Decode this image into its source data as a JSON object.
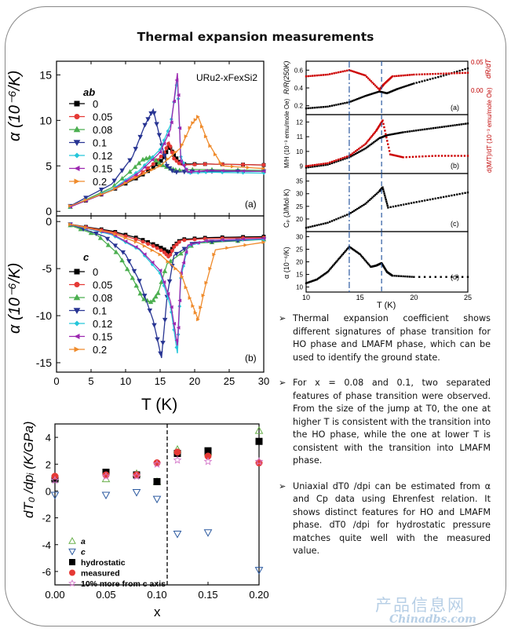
{
  "page": {
    "title": "Thermal expansion measurements"
  },
  "fig_left": {
    "compound": "URu2-xFexSi2",
    "ylabel": "α (10⁻⁶/K)",
    "xlabel": "T (K)",
    "panel_a_label": "(a)",
    "panel_b_label": "(b)",
    "legend_a_title": "ab",
    "legend_b_title": "c",
    "legend_entries": [
      "0",
      "0.05",
      "0.08",
      "0.1",
      "0.12",
      "0.15",
      "0.2"
    ],
    "legend_colors": [
      "#000000",
      "#e53935",
      "#4caf50",
      "#283593",
      "#26c6da",
      "#9c27b0",
      "#ef8b2c"
    ],
    "xticks": [
      "0",
      "5",
      "10",
      "15",
      "20",
      "25",
      "30"
    ],
    "yticks_a": [
      "0",
      "5",
      "10",
      "15"
    ],
    "yticks_b": [
      "0",
      "-5",
      "-10",
      "-15"
    ]
  },
  "fig_right": {
    "xlabel": "T (K)",
    "xticks": [
      "10",
      "15",
      "20",
      "25"
    ],
    "panel_a": {
      "label": "(a)",
      "yleft": "R/R(250K)",
      "yright": "dR/dT",
      "yticks_left": [
        "0.2",
        "0.4",
        "0.6"
      ],
      "yticks_right": [
        "0.00",
        "0.05"
      ]
    },
    "panel_b": {
      "label": "(b)",
      "yleft": "M/H (10⁻³ emu/mole Oe)",
      "yright": "d(M/T)/dT (10⁻³ emu/mole Oe)",
      "yticks_left": [
        "9",
        "10",
        "11",
        "12"
      ]
    },
    "panel_c": {
      "label": "(c)",
      "yleft": "Cₚ (J/Mol·K)",
      "yticks_left": [
        "15",
        "20",
        "25",
        "30",
        "35"
      ]
    },
    "panel_d": {
      "label": "(d)",
      "yleft": "α (10⁻⁶/K)",
      "yticks_left": [
        "10",
        "15",
        "20",
        "25",
        "30"
      ]
    }
  },
  "fig_bottom": {
    "ylabel": "dT₀ /dpᵢ (K/GPa)",
    "xlabel": "x",
    "xticks": [
      "0.00",
      "0.05",
      "0.10",
      "0.15",
      "0.20"
    ],
    "yticks": [
      "4",
      "2",
      "0",
      "-2",
      "-4",
      "-6"
    ],
    "legend": [
      "a",
      "c",
      "hydrostatic",
      "measured",
      "10% more from c axis"
    ]
  },
  "bullets": [
    "Thermal expansion coefficient shows different signatures of phase transition for HO phase and LMAFM phase, which can be used to identify the ground state.",
    "For x = 0.08 and 0.1, two separated features of phase transition were observed. From the size of the jump at T0, the one at higher T is consistent with the transition into the HO phase, while the one at lower T is consistent with the transition into LMAFM phase.",
    "Uniaxial dT0 /dpi can be estimated from α and Cp data using Ehrenfest relation. It shows distinct features for HO and LMAFM phase. dT0 /dpi for hydrostatic pressure matches quite well with the measured value."
  ],
  "watermark": {
    "cn": "产品信息网",
    "en": "Chinadbs.com"
  },
  "chart_data": [
    {
      "type": "line",
      "title": "",
      "xlabel": "T (K)",
      "ylabel": "α (10⁻⁶/K) — ab",
      "xlim": [
        0,
        30
      ],
      "ylim": [
        -0.5,
        16.5
      ],
      "series": [
        {
          "name": "0",
          "color": "#000000",
          "x": [
            2,
            8,
            12,
            14,
            15.5,
            16.3,
            17,
            18,
            22,
            30
          ],
          "y": [
            0.5,
            2.3,
            3.8,
            4.8,
            5.8,
            7.2,
            6.2,
            5.2,
            5.2,
            5.1
          ]
        },
        {
          "name": "0.05",
          "color": "#e53935",
          "x": [
            2,
            8,
            12,
            14,
            15.5,
            16.3,
            17,
            18,
            22,
            30
          ],
          "y": [
            0.5,
            2.4,
            4.0,
            5.2,
            6.3,
            7.6,
            5.8,
            5.1,
            5.2,
            5.1
          ]
        },
        {
          "name": "0.08",
          "color": "#4caf50",
          "x": [
            2,
            8,
            11,
            12.5,
            13.8,
            15,
            16.5,
            17.5,
            20,
            30
          ],
          "y": [
            0.5,
            2.6,
            4.6,
            5.7,
            6.0,
            5.2,
            4.7,
            4.5,
            4.6,
            4.5
          ]
        },
        {
          "name": "0.1",
          "color": "#283593",
          "x": [
            2,
            8,
            11,
            12.8,
            14,
            15,
            16,
            17,
            20,
            30
          ],
          "y": [
            0.6,
            3.0,
            6.0,
            9.5,
            11.2,
            8.0,
            5.0,
            4.3,
            4.4,
            4.4
          ]
        },
        {
          "name": "0.12",
          "color": "#26c6da",
          "x": [
            2,
            8,
            12,
            15,
            16.5,
            17.5,
            18,
            19,
            22,
            30
          ],
          "y": [
            0.5,
            2.4,
            4.5,
            6.8,
            9.5,
            14.5,
            6.0,
            4.2,
            4.3,
            4.2
          ]
        },
        {
          "name": "0.15",
          "color": "#9c27b0",
          "x": [
            2,
            8,
            12,
            15,
            16.5,
            17.5,
            18,
            19,
            22,
            30
          ],
          "y": [
            0.5,
            2.3,
            4.3,
            6.5,
            9.0,
            15.2,
            5.5,
            4.3,
            4.5,
            4.4
          ]
        },
        {
          "name": "0.2",
          "color": "#ef8b2c",
          "x": [
            2,
            8,
            12,
            15,
            18,
            19.5,
            20.5,
            22,
            24,
            30
          ],
          "y": [
            0.6,
            2.3,
            3.9,
            5.0,
            7.0,
            9.5,
            10.4,
            7.5,
            5.0,
            4.7
          ]
        }
      ]
    },
    {
      "type": "line",
      "title": "",
      "xlabel": "T (K)",
      "ylabel": "α (10⁻⁶/K) — c",
      "xlim": [
        0,
        30
      ],
      "ylim": [
        -16,
        0.6
      ],
      "series": [
        {
          "name": "0",
          "color": "#000000",
          "x": [
            2,
            8,
            12,
            14,
            15.5,
            16.3,
            17,
            18,
            22,
            30
          ],
          "y": [
            -0.3,
            -1.0,
            -1.8,
            -2.4,
            -2.9,
            -3.4,
            -2.6,
            -1.9,
            -1.7,
            -1.6
          ]
        },
        {
          "name": "0.05",
          "color": "#e53935",
          "x": [
            2,
            8,
            12,
            14,
            15.5,
            16.3,
            17,
            18,
            22,
            30
          ],
          "y": [
            -0.3,
            -1.1,
            -2.0,
            -2.6,
            -3.2,
            -3.8,
            -2.7,
            -2.0,
            -1.8,
            -1.7
          ]
        },
        {
          "name": "0.08",
          "color": "#4caf50",
          "x": [
            2,
            6,
            9,
            11,
            12.5,
            13.8,
            14.7,
            16,
            20,
            30
          ],
          "y": [
            -0.4,
            -1.5,
            -3.5,
            -6.0,
            -8.2,
            -8.6,
            -7.6,
            -4.5,
            -2.3,
            -1.9
          ]
        },
        {
          "name": "0.1",
          "color": "#283593",
          "x": [
            2,
            7,
            10,
            12,
            14,
            15.2,
            16,
            17,
            20,
            30
          ],
          "y": [
            -0.3,
            -1.6,
            -3.5,
            -6.3,
            -10.5,
            -14.5,
            -8.0,
            -3.6,
            -2.2,
            -1.9
          ]
        },
        {
          "name": "0.12",
          "color": "#26c6da",
          "x": [
            2,
            8,
            12,
            15,
            16.5,
            17.5,
            18,
            19,
            22,
            30
          ],
          "y": [
            -0.3,
            -1.4,
            -3.0,
            -5.5,
            -9.0,
            -14.0,
            -6.0,
            -2.6,
            -2.0,
            -1.9
          ]
        },
        {
          "name": "0.15",
          "color": "#9c27b0",
          "x": [
            2,
            8,
            12,
            15,
            16.5,
            17.5,
            18,
            19,
            22,
            30
          ],
          "y": [
            -0.3,
            -1.3,
            -2.9,
            -5.2,
            -8.5,
            -13.2,
            -5.5,
            -2.5,
            -2.0,
            -1.8
          ]
        },
        {
          "name": "0.2",
          "color": "#ef8b2c",
          "x": [
            2,
            8,
            12,
            15,
            18,
            19.5,
            20.5,
            21.5,
            23,
            30
          ],
          "y": [
            -0.3,
            -1.2,
            -2.3,
            -3.5,
            -5.5,
            -8.5,
            -10.4,
            -7.0,
            -3.0,
            -2.2
          ]
        }
      ]
    },
    {
      "type": "scatter",
      "title": "",
      "xlabel": "x",
      "ylabel": "dT₀ /dpᵢ (K/GPa)",
      "xlim": [
        0,
        0.2
      ],
      "ylim": [
        -7,
        5
      ],
      "divider_x": 0.11,
      "series": [
        {
          "name": "a",
          "marker": "triangle-up",
          "color": "#6ab04c",
          "x": [
            0,
            0.05,
            0.08,
            0.1,
            0.12,
            0.15,
            0.2
          ],
          "y": [
            1.0,
            0.9,
            1.3,
            0.7,
            3.1,
            2.9,
            4.5
          ]
        },
        {
          "name": "c",
          "marker": "triangle-down",
          "color": "#2c5aa0",
          "x": [
            0,
            0.05,
            0.08,
            0.1,
            0.12,
            0.15,
            0.2
          ],
          "y": [
            -0.3,
            -0.3,
            -0.1,
            -0.6,
            -3.2,
            -3.1,
            -5.9
          ]
        },
        {
          "name": "hydrostatic",
          "marker": "square",
          "color": "#000000",
          "x": [
            0,
            0.05,
            0.08,
            0.1,
            0.12,
            0.15,
            0.2
          ],
          "y": [
            0.9,
            1.4,
            1.2,
            0.7,
            2.8,
            3.0,
            3.7
          ]
        },
        {
          "name": "measured",
          "marker": "circle",
          "color": "#e53935",
          "x": [
            0,
            0.05,
            0.08,
            0.1,
            0.12,
            0.15,
            0.2
          ],
          "y": [
            1.1,
            1.2,
            1.2,
            2.1,
            2.9,
            2.6,
            2.1
          ]
        },
        {
          "name": "10% more from c axis",
          "marker": "star",
          "color": "#d57acb",
          "x": [
            0,
            0.05,
            0.08,
            0.1,
            0.12,
            0.15,
            0.2
          ],
          "y": [
            0.8,
            1.1,
            1.1,
            2.0,
            2.3,
            2.2,
            2.2
          ]
        }
      ]
    },
    {
      "type": "line",
      "title": "",
      "xlabel": "T (K)",
      "ylabel": "R/R(250K) and dR/dT",
      "xlim": [
        10,
        25
      ],
      "ylim": [
        0.1,
        0.7
      ],
      "series": [
        {
          "x": [
            10,
            12,
            14,
            15.5,
            16.8,
            17.5,
            18.5,
            20,
            22.5,
            25
          ],
          "y": [
            0.17,
            0.19,
            0.24,
            0.31,
            0.36,
            0.34,
            0.39,
            0.45,
            0.53,
            0.62
          ]
        },
        {
          "x": [
            10,
            12,
            14,
            15.5,
            16.8,
            17.2,
            18,
            20,
            22.5,
            25
          ],
          "y": [
            0.53,
            0.55,
            0.6,
            0.54,
            0.38,
            0.44,
            0.53,
            0.55,
            0.56,
            0.57
          ]
        }
      ],
      "markers": [
        14,
        17
      ]
    },
    {
      "type": "line",
      "title": "",
      "xlabel": "T (K)",
      "ylabel": "M/H and d(M/T)/dT",
      "xlim": [
        10,
        25
      ],
      "ylim": [
        8.5,
        12.5
      ],
      "series": [
        {
          "x": [
            10,
            12,
            14,
            15.5,
            16.8,
            17.5,
            19,
            21,
            23,
            25
          ],
          "y": [
            8.9,
            9.1,
            9.6,
            10.2,
            10.9,
            11.1,
            11.3,
            11.5,
            11.7,
            11.9
          ]
        },
        {
          "x": [
            10,
            12,
            14,
            15.5,
            16.5,
            17.1,
            17.8,
            19,
            22,
            25
          ],
          "y": [
            9.0,
            9.2,
            9.7,
            10.5,
            11.4,
            12.1,
            9.8,
            9.6,
            9.7,
            9.7
          ]
        }
      ],
      "markers": [
        14,
        17
      ]
    },
    {
      "type": "line",
      "title": "",
      "xlabel": "T (K)",
      "ylabel": "Cₚ (J/Mol·K)",
      "xlim": [
        10,
        25
      ],
      "ylim": [
        15,
        38
      ],
      "series": [
        {
          "x": [
            10,
            12,
            14,
            15.5,
            16.8,
            17.1,
            17.6,
            20,
            22.5,
            25
          ],
          "y": [
            16.5,
            18.5,
            22,
            26,
            31,
            32.5,
            24.5,
            26.5,
            28.5,
            30.5
          ]
        }
      ],
      "markers": [
        14,
        17
      ]
    },
    {
      "type": "line",
      "title": "",
      "xlabel": "T (K)",
      "ylabel": "α (10⁻⁶/K)",
      "xlim": [
        10,
        25
      ],
      "ylim": [
        8,
        32
      ],
      "series": [
        {
          "x": [
            10,
            11,
            12,
            13,
            14,
            15,
            16,
            16.5,
            17,
            17.5,
            18,
            20,
            25
          ],
          "y": [
            11.5,
            13,
            16,
            21,
            26,
            23,
            18,
            18.5,
            19.5,
            16,
            14.5,
            14,
            14
          ]
        }
      ],
      "markers": [
        14,
        17
      ]
    }
  ]
}
